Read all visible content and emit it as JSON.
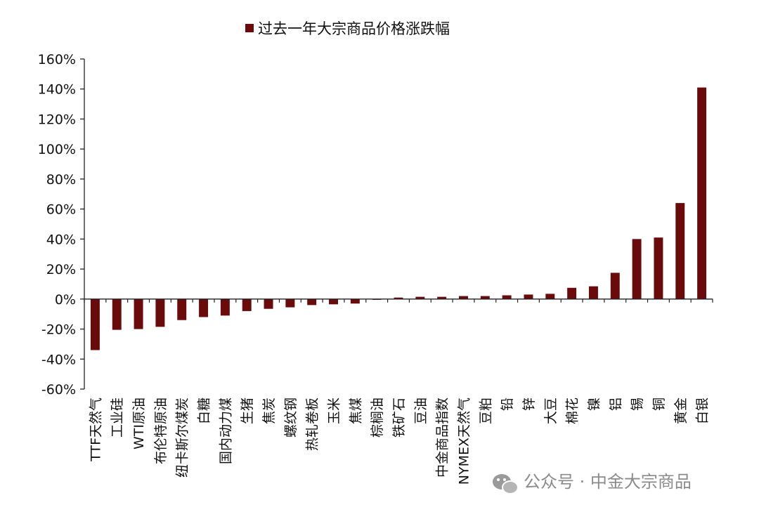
{
  "chart_data": {
    "type": "bar",
    "legend": "过去一年大宗商品价格涨跌幅",
    "legend_position": "top-center",
    "bar_color": "#6B0A0A",
    "ylim": [
      -60,
      160
    ],
    "yticks": [
      -60,
      -40,
      -20,
      0,
      20,
      40,
      60,
      80,
      100,
      120,
      140,
      160
    ],
    "ytick_labels": [
      "-60%",
      "-40%",
      "-20%",
      "0%",
      "20%",
      "40%",
      "60%",
      "80%",
      "100%",
      "120%",
      "140%",
      "160%"
    ],
    "grid": false,
    "categories": [
      "TTF天然气",
      "工业硅",
      "WTI原油",
      "布伦特原油",
      "纽卡斯尔煤炭",
      "白糖",
      "国内动力煤",
      "生猪",
      "焦炭",
      "螺纹钢",
      "热轧卷板",
      "玉米",
      "焦煤",
      "棕榈油",
      "铁矿石",
      "豆油",
      "中金商品指数",
      "NYMEX天然气",
      "豆粕",
      "铅",
      "锌",
      "大豆",
      "棉花",
      "镍",
      "铝",
      "锡",
      "铜",
      "黄金",
      "白银"
    ],
    "values": [
      -34,
      -20.5,
      -20,
      -18.5,
      -14,
      -12,
      -11,
      -8,
      -6.5,
      -5.5,
      -4,
      -3.5,
      -3,
      -0.5,
      1,
      1.5,
      1.5,
      2,
      2,
      2.5,
      3,
      3.5,
      7.5,
      8.5,
      17.5,
      40,
      41,
      64,
      141
    ]
  },
  "watermark": {
    "icon": "wechat-icon",
    "text": "公众号 · 中金大宗商品"
  }
}
